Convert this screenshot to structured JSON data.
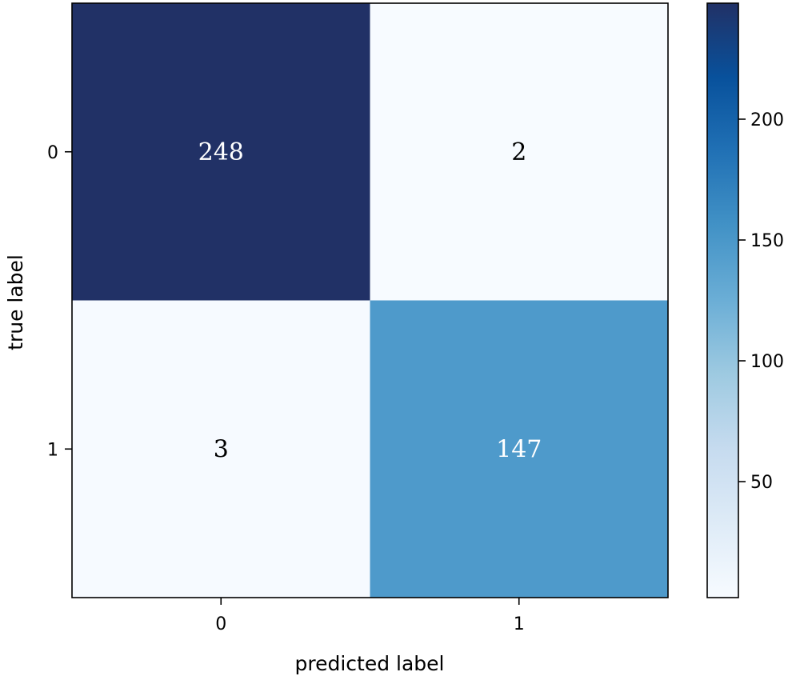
{
  "chart_data": {
    "type": "heatmap",
    "title": "",
    "xlabel": "predicted label",
    "ylabel": "true label",
    "x_categories": [
      "0",
      "1"
    ],
    "y_categories": [
      "0",
      "1"
    ],
    "matrix": [
      [
        248,
        2
      ],
      [
        3,
        147
      ]
    ],
    "cell_labels": [
      [
        "248",
        "2"
      ],
      [
        "3",
        "147"
      ]
    ],
    "colormap": "Blues",
    "colorbar": {
      "min": 2,
      "max": 248,
      "ticks": [
        50,
        100,
        150,
        200
      ],
      "tick_labels": [
        "50",
        "100",
        "150",
        "200"
      ]
    },
    "grid": false,
    "legend": "colorbar-right"
  }
}
